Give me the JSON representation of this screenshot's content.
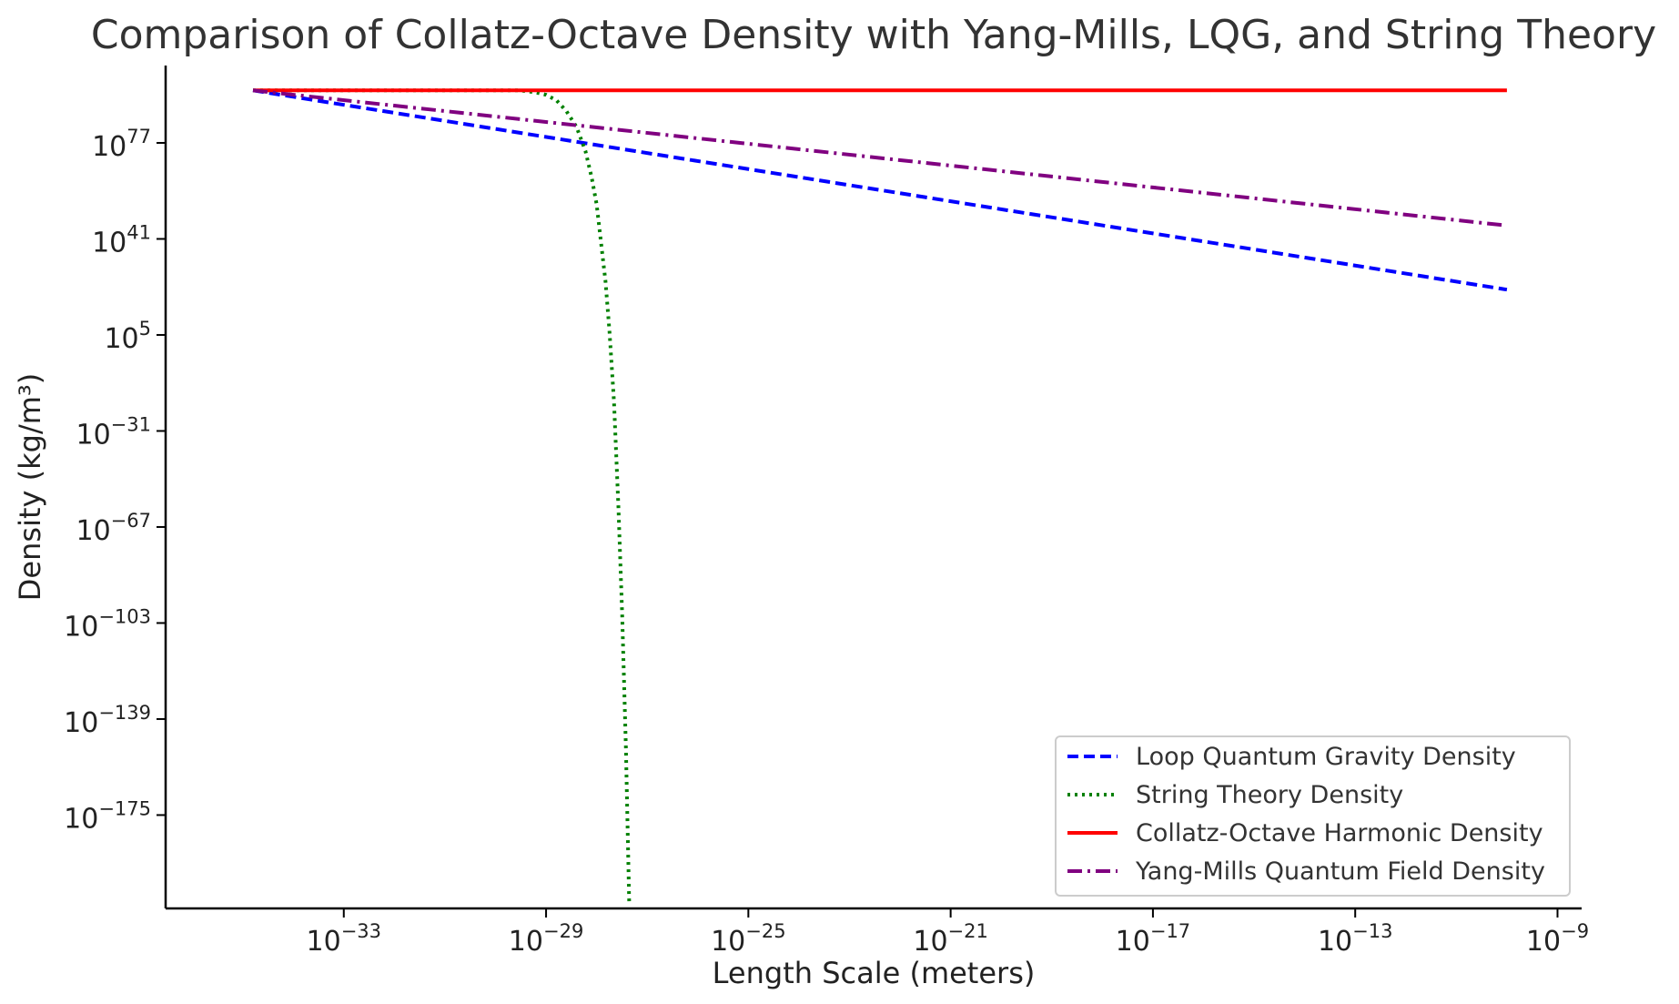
{
  "chart_data": {
    "type": "line",
    "title": "Comparison of Collatz-Octave Density with Yang-Mills, LQG, and String Theory",
    "xlabel": "Length Scale (meters)",
    "ylabel": "Density (kg/m³)",
    "x_scale": "log",
    "y_scale": "log",
    "xlim": [
      3e-37,
      3e-09
    ],
    "ylim": [
      1e-210,
      1e+106
    ],
    "x_ticks": [
      {
        "base": "10",
        "exp": "−33",
        "value": 1e-33
      },
      {
        "base": "10",
        "exp": "−29",
        "value": 1e-29
      },
      {
        "base": "10",
        "exp": "−25",
        "value": 1e-25
      },
      {
        "base": "10",
        "exp": "−21",
        "value": 1e-21
      },
      {
        "base": "10",
        "exp": "−17",
        "value": 1e-17
      },
      {
        "base": "10",
        "exp": "−13",
        "value": 1e-13
      },
      {
        "base": "10",
        "exp": "−9",
        "value": 1e-09
      }
    ],
    "y_ticks": [
      {
        "base": "10",
        "exp": "77",
        "value": 1e+77
      },
      {
        "base": "10",
        "exp": "41",
        "value": 1e+41
      },
      {
        "base": "10",
        "exp": "5",
        "value": 100000.0
      },
      {
        "base": "10",
        "exp": "−31",
        "value": 1e-31
      },
      {
        "base": "10",
        "exp": "−67",
        "value": 1e-67
      },
      {
        "base": "10",
        "exp": "−103",
        "value": 1e-103
      },
      {
        "base": "10",
        "exp": "−139",
        "value": 1e-139
      },
      {
        "base": "10",
        "exp": "−175",
        "value": 1e-175
      }
    ],
    "grid": false,
    "legend_position": "lower right",
    "series": [
      {
        "name": "Loop Quantum Gravity Density",
        "color": "#0000ff",
        "style": "dashed",
        "points": [
          [
            1.6e-35,
            5e+96
          ],
          [
            1e-10,
            1e+22
          ]
        ]
      },
      {
        "name": "String Theory Density",
        "color": "#008000",
        "style": "dotted",
        "points": [
          [
            1.6e-35,
            5e+96
          ],
          [
            1e-30,
            5e+96
          ],
          [
            3e-30,
            5e+96
          ],
          [
            6e-30,
            1e+96
          ],
          [
            1e-29,
            1e+95
          ],
          [
            1.6e-29,
            1e+93
          ],
          [
            2.5e-29,
            1e+89
          ],
          [
            4e-29,
            1e+83
          ],
          [
            6e-29,
            1e+74
          ],
          [
            8e-29,
            1e+64
          ],
          [
            1e-28,
            1e+54
          ],
          [
            1.2e-28,
            1e+41
          ],
          [
            1.5e-28,
            1e+25
          ],
          [
            1.8e-28,
            1000000.0
          ],
          [
            2.2e-28,
            1e-20
          ],
          [
            2.7e-28,
            1e-60
          ],
          [
            3.2e-28,
            1e-100
          ],
          [
            3.8e-28,
            1e-150
          ],
          [
            4.4e-28,
            1e-208
          ]
        ]
      },
      {
        "name": "Collatz-Octave Harmonic Density",
        "color": "#ff0000",
        "style": "solid",
        "points": [
          [
            1.6e-35,
            5e+96
          ],
          [
            1e-10,
            5e+96
          ]
        ]
      },
      {
        "name": "Yang-Mills Quantum Field Density",
        "color": "#800080",
        "style": "dashdot",
        "points": [
          [
            1.6e-35,
            5e+96
          ],
          [
            1e-10,
            1e+46
          ]
        ]
      }
    ]
  }
}
